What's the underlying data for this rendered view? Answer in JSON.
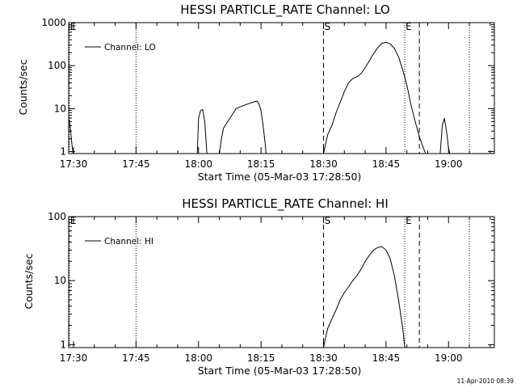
{
  "chart_data": [
    {
      "type": "line",
      "title": "HESSI PARTICLE_RATE Channel: LO",
      "xlabel": "Start Time (05-Mar-03 17:28:50)",
      "ylabel": "Counts/sec",
      "yscale": "log",
      "xlim": [
        "17:28:50",
        "19:11:00"
      ],
      "ylim": [
        0.9,
        1000
      ],
      "x_ticks": [
        "17:30",
        "17:45",
        "18:00",
        "18:15",
        "18:30",
        "18:45",
        "19:00"
      ],
      "y_ticks": [
        "1",
        "10",
        "100",
        "1000"
      ],
      "legend_placement": "top-left",
      "markers": [
        {
          "time": "17:29",
          "label": "E",
          "style": "dotted"
        },
        {
          "time": "17:45",
          "label": "",
          "style": "dotted"
        },
        {
          "time": "18:30",
          "label": "S",
          "style": "dashed"
        },
        {
          "time": "18:49.5",
          "label": "E",
          "style": "dotted"
        },
        {
          "time": "18:53",
          "label": "",
          "style": "dashed"
        },
        {
          "time": "19:05",
          "label": "",
          "style": "dotted"
        }
      ],
      "series": [
        {
          "name": "Channel: LO",
          "segments": [
            [
              [
                "17:29",
                5.5
              ],
              [
                "17:29.3",
                3
              ],
              [
                "17:29.6",
                1.5
              ],
              [
                "17:29.9",
                0.9
              ]
            ],
            [
              [
                "17:59.7",
                0.9
              ],
              [
                "18:00",
                6
              ],
              [
                "18:00.5",
                9
              ],
              [
                "18:01",
                9.5
              ],
              [
                "18:01.5",
                5
              ],
              [
                "18:02",
                0.9
              ]
            ],
            [
              [
                "18:05",
                0.9
              ],
              [
                "18:05.5",
                2
              ],
              [
                "18:06",
                3.5
              ],
              [
                "18:07",
                5
              ],
              [
                "18:08",
                7
              ],
              [
                "18:09",
                10
              ],
              [
                "18:10",
                11
              ],
              [
                "18:11",
                12
              ],
              [
                "18:12",
                13
              ],
              [
                "18:13",
                14
              ],
              [
                "18:14",
                15
              ],
              [
                "18:14.5",
                13
              ],
              [
                "18:15",
                9
              ],
              [
                "18:15.5",
                4
              ],
              [
                "18:16",
                1.5
              ],
              [
                "18:16.2",
                0.9
              ]
            ],
            [
              [
                "18:30",
                0.9
              ],
              [
                "18:30.5",
                1.5
              ],
              [
                "18:31",
                2.5
              ],
              [
                "18:32",
                4
              ],
              [
                "18:33",
                8
              ],
              [
                "18:34",
                14
              ],
              [
                "18:35",
                25
              ],
              [
                "18:36",
                40
              ],
              [
                "18:37",
                50
              ],
              [
                "18:38",
                55
              ],
              [
                "18:39",
                65
              ],
              [
                "18:40",
                90
              ],
              [
                "18:41",
                130
              ],
              [
                "18:42",
                190
              ],
              [
                "18:43",
                260
              ],
              [
                "18:44",
                330
              ],
              [
                "18:45",
                350
              ],
              [
                "18:46",
                320
              ],
              [
                "18:47",
                250
              ],
              [
                "18:48",
                160
              ],
              [
                "18:49",
                80
              ],
              [
                "18:50",
                35
              ],
              [
                "18:51",
                12
              ],
              [
                "18:52",
                5
              ],
              [
                "18:53",
                2.2
              ],
              [
                "18:54",
                1.2
              ],
              [
                "18:54.5",
                0.9
              ]
            ],
            [
              [
                "18:58",
                0.9
              ],
              [
                "18:58.5",
                4
              ],
              [
                "18:59",
                6
              ],
              [
                "18:59.5",
                3
              ],
              [
                "19:00",
                1.2
              ],
              [
                "19:00.3",
                0.9
              ]
            ]
          ]
        }
      ]
    },
    {
      "type": "line",
      "title": "HESSI PARTICLE_RATE Channel: HI",
      "xlabel": "Start Time (05-Mar-03 17:28:50)",
      "ylabel": "Counts/sec",
      "yscale": "log",
      "xlim": [
        "17:28:50",
        "19:11:00"
      ],
      "ylim": [
        0.9,
        100
      ],
      "x_ticks": [
        "17:30",
        "17:45",
        "18:00",
        "18:15",
        "18:30",
        "18:45",
        "19:00"
      ],
      "y_ticks": [
        "1",
        "10",
        "100"
      ],
      "legend_placement": "top-left",
      "markers": [
        {
          "time": "17:29",
          "label": "E",
          "style": "dotted"
        },
        {
          "time": "17:45",
          "label": "",
          "style": "dotted"
        },
        {
          "time": "18:30",
          "label": "S",
          "style": "dashed"
        },
        {
          "time": "18:49.5",
          "label": "E",
          "style": "dotted"
        },
        {
          "time": "18:53",
          "label": "",
          "style": "dashed"
        },
        {
          "time": "19:05",
          "label": "",
          "style": "dotted"
        }
      ],
      "series": [
        {
          "name": "Channel: HI",
          "segments": [
            [
              [
                "18:30",
                0.9
              ],
              [
                "18:30.5",
                1.3
              ],
              [
                "18:31",
                1.8
              ],
              [
                "18:32",
                2.5
              ],
              [
                "18:33",
                3.5
              ],
              [
                "18:34",
                5
              ],
              [
                "18:35",
                6.5
              ],
              [
                "18:36",
                8
              ],
              [
                "18:37",
                10
              ],
              [
                "18:38",
                12
              ],
              [
                "18:39",
                15
              ],
              [
                "18:40",
                20
              ],
              [
                "18:41",
                25
              ],
              [
                "18:42",
                30
              ],
              [
                "18:43",
                33
              ],
              [
                "18:44",
                34
              ],
              [
                "18:45",
                30
              ],
              [
                "18:46",
                22
              ],
              [
                "18:47",
                12
              ],
              [
                "18:48",
                5
              ],
              [
                "18:49",
                1.8
              ],
              [
                "18:49.5",
                0.9
              ]
            ]
          ]
        }
      ]
    }
  ],
  "footer": "11-Apr-2010 08:39"
}
